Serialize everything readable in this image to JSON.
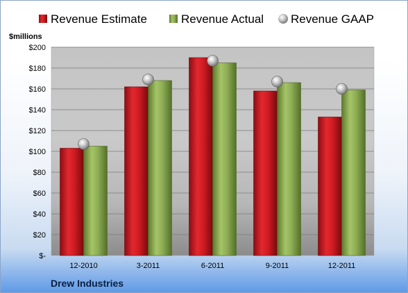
{
  "chart_data": {
    "type": "bar",
    "categories": [
      "12-2010",
      "3-2011",
      "6-2011",
      "9-2011",
      "12-2011"
    ],
    "series": [
      {
        "name": "Revenue Estimate",
        "type": "bar",
        "color": "#c8161e",
        "values": [
          103,
          162,
          190,
          158,
          133
        ]
      },
      {
        "name": "Revenue Actual",
        "type": "bar",
        "color": "#8cad4f",
        "values": [
          105,
          168,
          185,
          166,
          159
        ]
      },
      {
        "name": "Revenue GAAP",
        "type": "marker",
        "color": "#bdbdbd",
        "values": [
          107,
          169,
          187,
          167,
          160
        ]
      }
    ],
    "ylabel": "$millions",
    "ylim": [
      0,
      200
    ],
    "yticks": [
      0,
      20,
      40,
      60,
      80,
      100,
      120,
      140,
      160,
      180,
      200
    ],
    "ytick_labels": [
      "$-",
      "$20",
      "$40",
      "$60",
      "$80",
      "$100",
      "$120",
      "$140",
      "$160",
      "$180",
      "$200"
    ],
    "grid": true,
    "legend_position": "top",
    "company": "Drew Industries"
  }
}
